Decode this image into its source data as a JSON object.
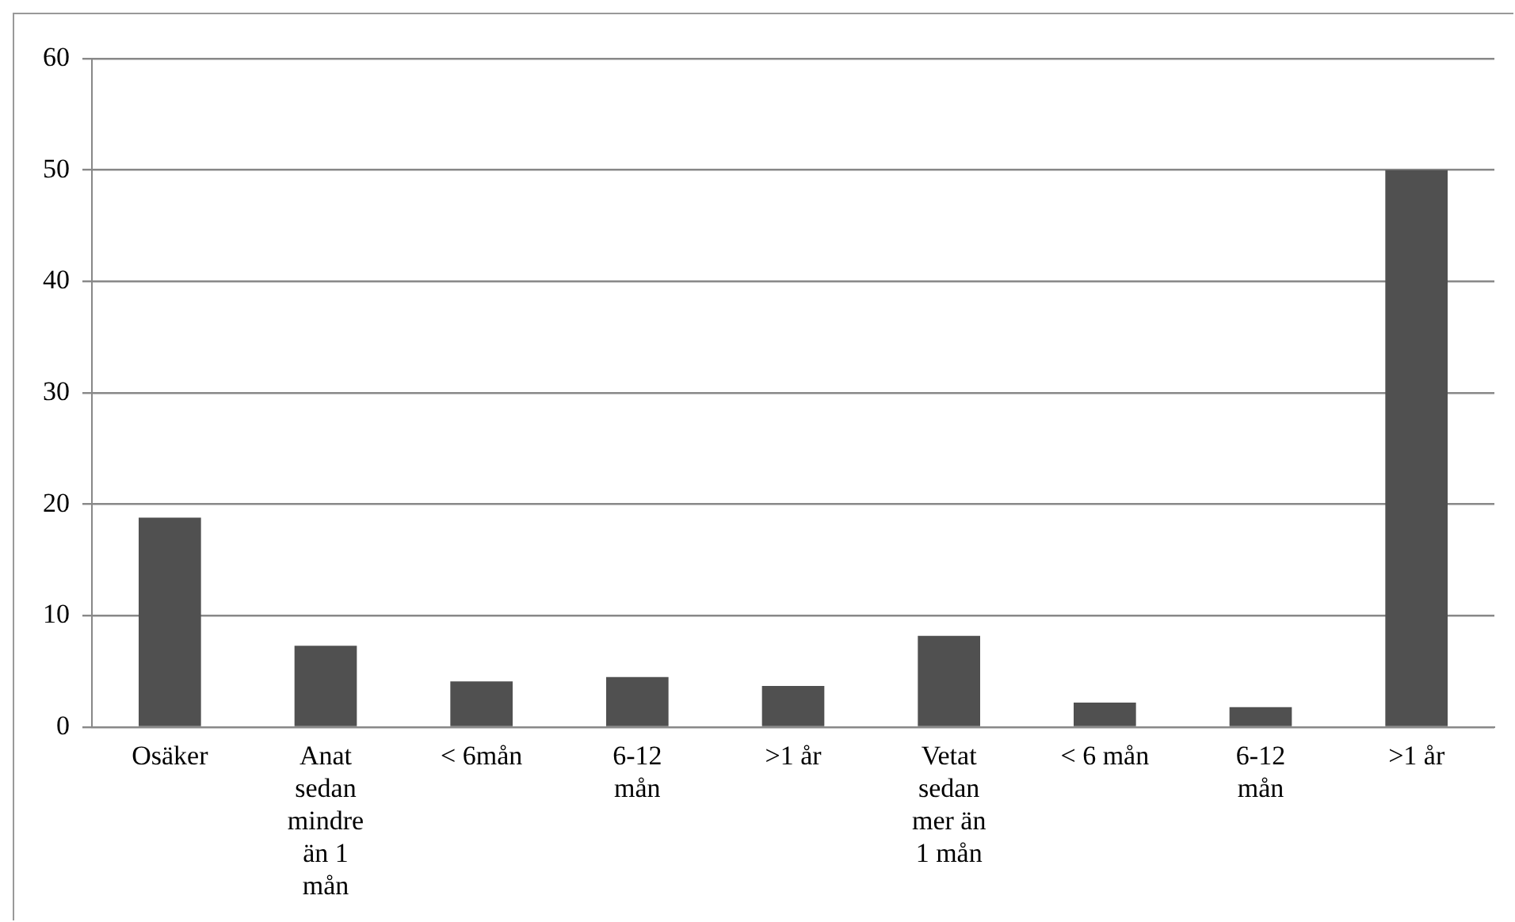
{
  "chart_data": {
    "type": "bar",
    "categories": [
      "Osäker",
      "Anat sedan mindre än 1 mån",
      "< 6mån",
      "6-12 mån",
      ">1 år",
      "Vetat sedan mer än 1 mån",
      "< 6 mån",
      "6-12 mån",
      ">1 år"
    ],
    "values": [
      18.8,
      7.3,
      4.1,
      4.5,
      3.7,
      8.2,
      2.2,
      1.8,
      50
    ],
    "color": "#505050",
    "ylim": [
      0,
      60
    ],
    "yticks": [
      0,
      10,
      20,
      30,
      40,
      50,
      60
    ],
    "grid": "y"
  }
}
